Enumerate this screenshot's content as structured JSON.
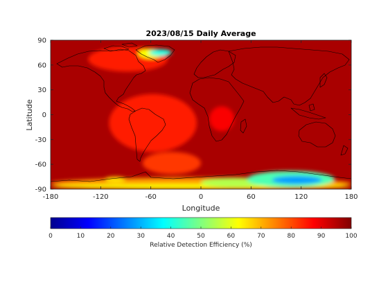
{
  "chart_data": {
    "type": "heatmap",
    "title": "2023/08/15 Daily Average",
    "xlabel": "Longitude",
    "ylabel": "Latitude",
    "xlim": [
      -180,
      180
    ],
    "ylim": [
      -90,
      90
    ],
    "xticks": [
      -180,
      -120,
      -60,
      0,
      60,
      120,
      180
    ],
    "yticks": [
      -90,
      -60,
      -30,
      0,
      30,
      60,
      90
    ],
    "xtick_labels": [
      "-180",
      "-120",
      "-60",
      "0",
      "60",
      "120",
      "180"
    ],
    "ytick_labels": [
      "-90",
      "-60",
      "-30",
      "0",
      "30",
      "60",
      "90"
    ],
    "colorbar": {
      "label": "Relative Detection Efficiency (%)",
      "range": [
        0,
        100
      ],
      "ticks": [
        0,
        10,
        20,
        30,
        40,
        50,
        60,
        70,
        80,
        90,
        100
      ],
      "tick_labels": [
        "0",
        "10",
        "20",
        "30",
        "40",
        "50",
        "60",
        "70",
        "80",
        "90",
        "100"
      ],
      "colormap": "jet",
      "orientation": "horizontal"
    },
    "background_value": 96,
    "regions": [
      {
        "lon": [
          -110,
          -5
        ],
        "lat": [
          -45,
          25
        ],
        "value": 85
      },
      {
        "lon": [
          -135,
          -40
        ],
        "lat": [
          52,
          82
        ],
        "value": 85
      },
      {
        "lon": [
          -75,
          -45
        ],
        "lat": [
          68,
          80
        ],
        "value": 62
      },
      {
        "lon": [
          -62,
          -35
        ],
        "lat": [
          71,
          79
        ],
        "value": 40
      },
      {
        "lon": [
          10,
          40
        ],
        "lat": [
          -20,
          10
        ],
        "value": 88
      },
      {
        "lon": [
          -70,
          0
        ],
        "lat": [
          -72,
          -45
        ],
        "value": 82
      },
      {
        "lon": [
          -180,
          180
        ],
        "lat": [
          -90,
          -76
        ],
        "value": 72
      },
      {
        "lon": [
          -180,
          180
        ],
        "lat": [
          -90,
          -84
        ],
        "value": 62
      },
      {
        "lon": [
          -115,
          -90
        ],
        "lat": [
          -82,
          -75
        ],
        "value": 65
      },
      {
        "lon": [
          0,
          80
        ],
        "lat": [
          -88,
          -76
        ],
        "value": 55
      },
      {
        "lon": [
          55,
          160
        ],
        "lat": [
          -88,
          -68
        ],
        "value": 45
      },
      {
        "lon": [
          85,
          145
        ],
        "lat": [
          -84,
          -74
        ],
        "value": 28
      }
    ],
    "map_overlay": "world coastlines"
  }
}
